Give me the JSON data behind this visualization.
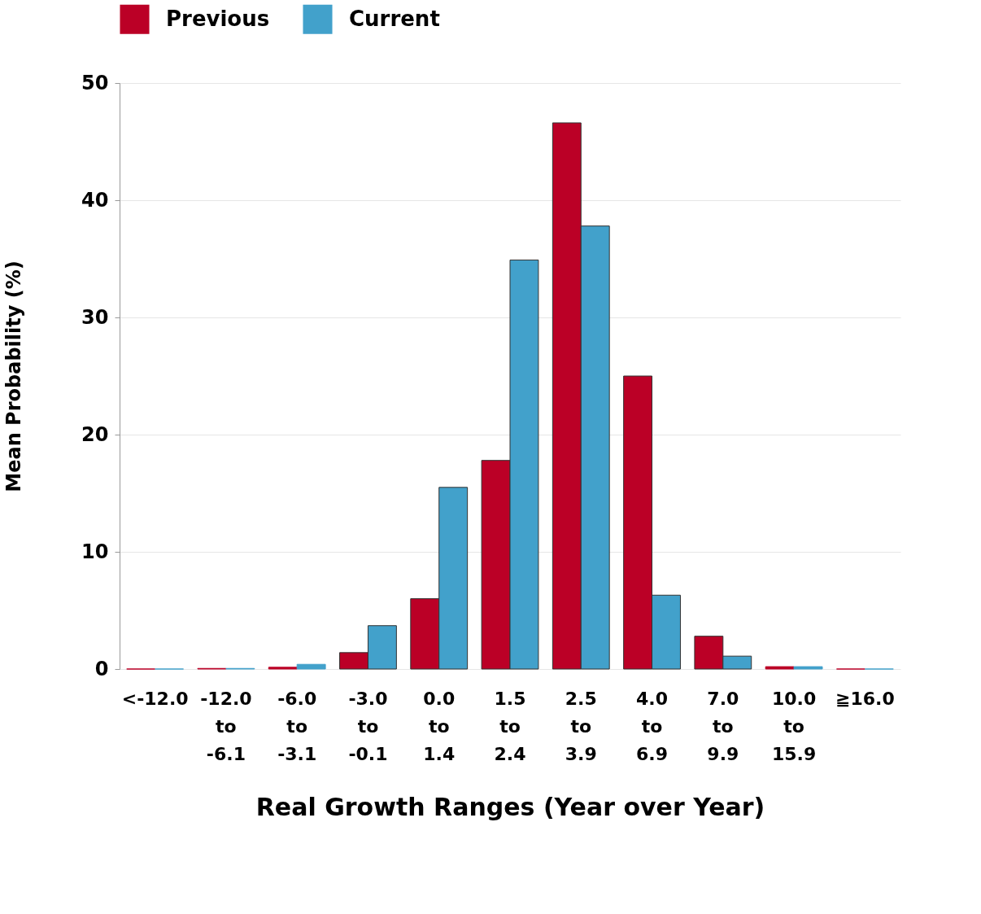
{
  "chart_data": {
    "type": "bar",
    "xlabel": "Real Growth Ranges (Year over Year)",
    "ylabel": "Mean Probability (%)",
    "categories": [
      "<-12.0",
      "-12.0\nto\n-6.1",
      "-6.0\nto\n-3.1",
      "-3.0\nto\n-0.1",
      "0.0\nto\n1.4",
      "1.5\nto\n2.4",
      "2.5\nto\n3.9",
      "4.0\nto\n6.9",
      "7.0\nto\n9.9",
      "10.0\nto\n15.9",
      "≧16.0"
    ],
    "series": [
      {
        "name": "Previous",
        "color": "#bb0026",
        "values": [
          0,
          0.05,
          0.15,
          1.4,
          6.0,
          17.8,
          46.6,
          25.0,
          2.8,
          0.2,
          0
        ]
      },
      {
        "name": "Current",
        "color": "#42a1cb",
        "values": [
          0,
          0.05,
          0.4,
          3.7,
          15.5,
          34.9,
          37.8,
          6.3,
          1.1,
          0.2,
          0
        ]
      }
    ],
    "ylim": [
      0,
      50
    ],
    "yticks": [
      0,
      10,
      20,
      30,
      40,
      50
    ],
    "grid": "y",
    "legend": "top"
  }
}
